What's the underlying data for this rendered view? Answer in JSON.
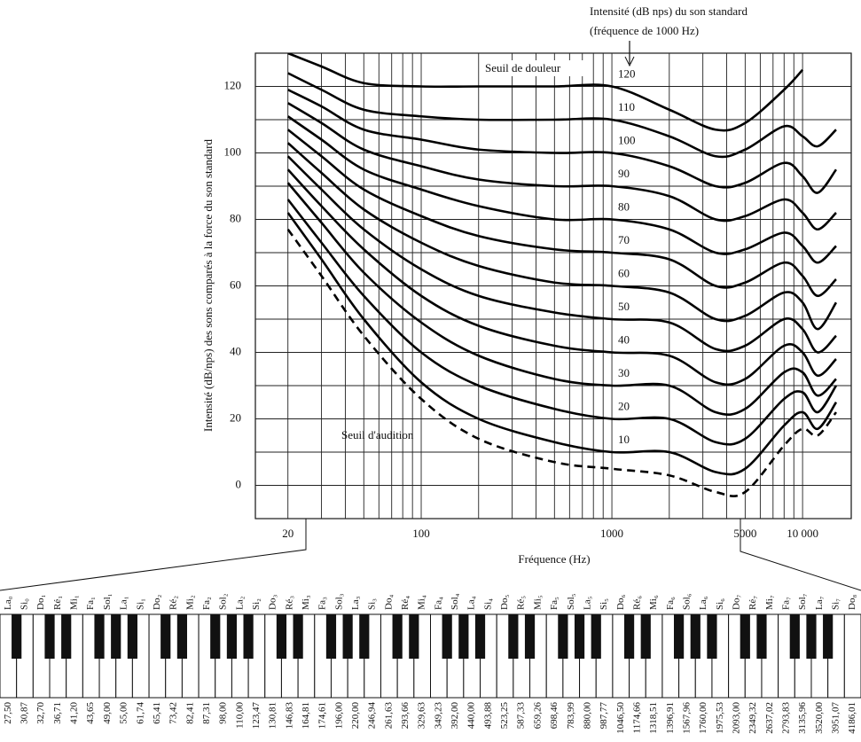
{
  "chart_data": {
    "type": "line",
    "title": "Intensité (dB nps) du son standard",
    "subtitle": "(fréquence de 1000 Hz)",
    "x_label": "Fréquence (Hz)",
    "y_label": "Intensité (dB/nps) des sons comparés à la force du son standard",
    "annotations": [
      "Seuil de douleur"
    ],
    "log_x": true,
    "color": "#000000",
    "x": [
      20,
      30,
      50,
      100,
      200,
      500,
      1000,
      2000,
      3500,
      5000,
      8000,
      10000,
      12000,
      15000
    ],
    "series": [
      {
        "name": "Seuil d'audition",
        "style": "dashed",
        "values": [
          77,
          63,
          45,
          26,
          14,
          7,
          5,
          3,
          -2,
          -2,
          12,
          17,
          15,
          22
        ]
      },
      {
        "name": "10",
        "values": [
          82,
          68,
          50,
          31,
          20,
          13,
          10,
          10,
          4,
          5,
          18,
          22,
          17,
          25
        ]
      },
      {
        "name": "20",
        "values": [
          86,
          73,
          57,
          40,
          30,
          23,
          20,
          20,
          13,
          14,
          26,
          28,
          22,
          30
        ]
      },
      {
        "name": "30",
        "values": [
          91,
          79,
          64,
          49,
          39,
          32,
          30,
          30,
          22,
          23,
          34,
          34,
          27,
          32
        ]
      },
      {
        "name": "40",
        "values": [
          95,
          84,
          71,
          57,
          48,
          42,
          40,
          39,
          31,
          32,
          42,
          40,
          33,
          38
        ]
      },
      {
        "name": "50",
        "values": [
          99,
          89,
          77,
          65,
          57,
          52,
          50,
          49,
          41,
          42,
          50,
          47,
          40,
          45
        ]
      },
      {
        "name": "60",
        "values": [
          103,
          94,
          83,
          73,
          66,
          61,
          60,
          58,
          50,
          51,
          58,
          55,
          47,
          55
        ]
      },
      {
        "name": "70",
        "values": [
          107,
          99,
          89,
          81,
          75,
          71,
          70,
          68,
          60,
          61,
          67,
          63,
          57,
          62
        ]
      },
      {
        "name": "80",
        "values": [
          111,
          104,
          95,
          89,
          84,
          80,
          80,
          77,
          70,
          71,
          76,
          72,
          67,
          72
        ]
      },
      {
        "name": "90",
        "values": [
          115,
          109,
          101,
          96,
          92,
          90,
          90,
          87,
          80,
          81,
          86,
          82,
          77,
          82
        ]
      },
      {
        "name": "100",
        "values": [
          119,
          114,
          107,
          104,
          101,
          100,
          100,
          96,
          90,
          91,
          97,
          93,
          88,
          95
        ]
      },
      {
        "name": "110",
        "values": [
          124,
          119,
          113,
          111,
          110,
          110,
          110,
          105,
          99,
          101,
          108,
          105,
          102,
          107
        ]
      },
      {
        "name": "120",
        "values": [
          130,
          126,
          121,
          120,
          120,
          120,
          120,
          113,
          107,
          109,
          119,
          125,
          null,
          null
        ]
      }
    ],
    "xlim": [
      13.5,
      18000
    ],
    "ylim": [
      -10,
      130
    ],
    "xticks": [
      20,
      100,
      1000,
      5000,
      {
        "value": 10000,
        "label": "10 000"
      }
    ],
    "xminor": [
      20,
      30,
      40,
      50,
      60,
      70,
      80,
      90,
      100,
      200,
      300,
      400,
      500,
      600,
      700,
      800,
      900,
      1000,
      2000,
      3000,
      4000,
      5000,
      6000,
      7000,
      8000,
      9000,
      10000
    ],
    "yticks": [
      0,
      20,
      40,
      60,
      80,
      100,
      120
    ],
    "yminor": [
      -10,
      0,
      10,
      20,
      30,
      40,
      50,
      60,
      70,
      80,
      90,
      100,
      110,
      120,
      130
    ],
    "grid": true
  },
  "keyboard": {
    "notes": [
      "La₀",
      "Si₀",
      "Do₁",
      "Ré₁",
      "Mi₁",
      "Fa₁",
      "Sol₁",
      "La₁",
      "Si₁",
      "Do₂",
      "Ré₂",
      "Mi₂",
      "Fa₂",
      "Sol₂",
      "La₂",
      "Si₂",
      "Do₃",
      "Ré₃",
      "Mi₃",
      "Fa₃",
      "Sol₃",
      "La₃",
      "Si₃",
      "Do₄",
      "Ré₄",
      "Mi₄",
      "Fa₄",
      "Sol₄",
      "La₄",
      "Si₄",
      "Do₅",
      "Ré₅",
      "Mi₅",
      "Fa₅",
      "Sol₅",
      "La₅",
      "Si₅",
      "Do₆",
      "Ré₆",
      "Mi₆",
      "Fa₆",
      "Sol₆",
      "La₆",
      "Si₆",
      "Do₇",
      "Ré₇",
      "Mi₇",
      "Fa₇",
      "Sol₇",
      "La₇",
      "Si₇",
      "Do₈"
    ],
    "frequencies": [
      "27,50",
      "30,87",
      "32,70",
      "36,71",
      "41,20",
      "43,65",
      "49,00",
      "55,00",
      "61,74",
      "65,41",
      "73,42",
      "82,41",
      "87,31",
      "98,00",
      "110,00",
      "123,47",
      "130,81",
      "146,83",
      "164,81",
      "174,61",
      "196,00",
      "220,00",
      "246,94",
      "261,63",
      "293,66",
      "329,63",
      "349,23",
      "392,00",
      "440,00",
      "493,88",
      "523,25",
      "587,33",
      "659,26",
      "698,46",
      "783,99",
      "880,00",
      "987,77",
      "1046,50",
      "1174,66",
      "1318,51",
      "1396,91",
      "1567,96",
      "1760,00",
      "1975,53",
      "2093,00",
      "2349,32",
      "2637,02",
      "2793,83",
      "3135,96",
      "3520,00",
      "3951,07",
      "4186,01"
    ]
  }
}
